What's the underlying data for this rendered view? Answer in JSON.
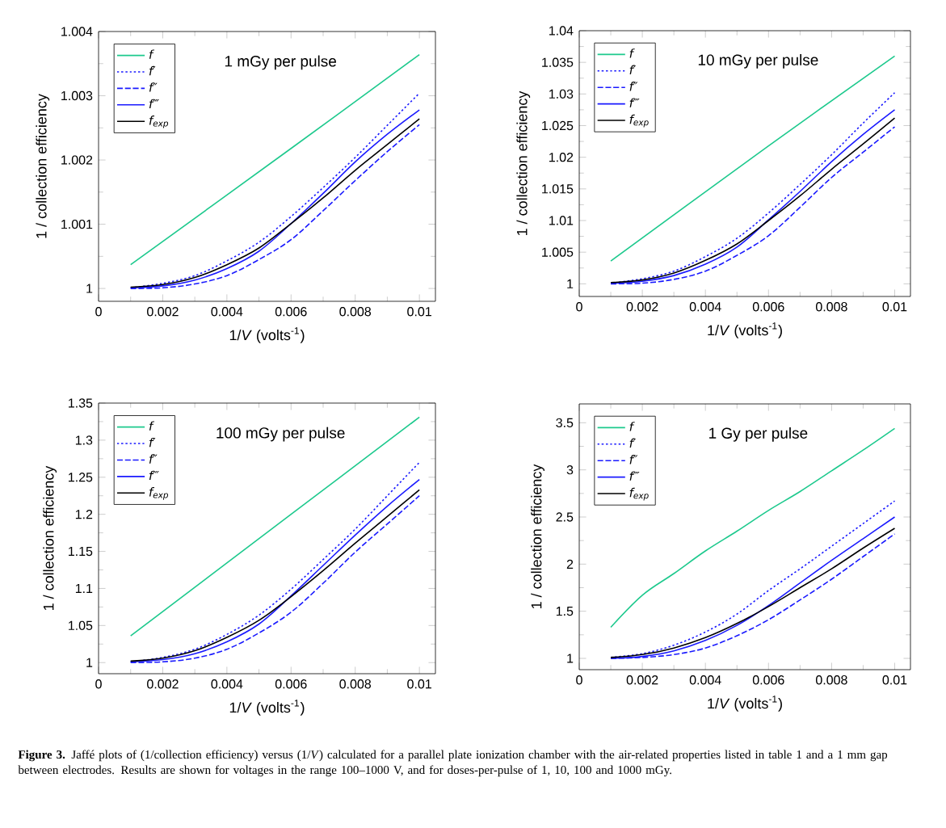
{
  "chart_data": [
    {
      "type": "line",
      "title": "1 mGy per pulse",
      "xlabel": "1/*V* (volts$^{-1}$)",
      "ylabel": "1 / collection efficiency",
      "legend": "top left",
      "grid": false,
      "xlim": [
        0,
        0.0105
      ],
      "ylim": [
        0.9998,
        1.004
      ],
      "xticks": [
        0,
        0.002,
        0.004,
        0.006,
        0.008,
        0.01
      ],
      "yticks": [
        1,
        1.001,
        1.002,
        1.003,
        1.004
      ],
      "x": [
        0.001,
        0.002,
        0.003,
        0.004,
        0.005,
        0.006,
        0.007,
        0.008,
        0.009,
        0.01
      ],
      "series": [
        {
          "name": "f",
          "color": "#1dc98d",
          "line_style": "solid",
          "x": [
            0.001,
            0.006,
            0.01
          ],
          "values": [
            1.00037,
            1.00218,
            1.00364
          ]
        },
        {
          "name": "f′",
          "color": "#1a1aff",
          "line_style": "dotted",
          "values": [
            1.00001,
            1.00008,
            1.0002,
            1.00043,
            1.00072,
            1.00112,
            1.00157,
            1.00204,
            1.00254,
            1.00304
          ]
        },
        {
          "name": "f″",
          "color": "#1a1aff",
          "line_style": "dashed",
          "values": [
            1.0,
            1.00001,
            1.00007,
            1.0002,
            1.00045,
            1.00076,
            1.00121,
            1.00168,
            1.00213,
            1.00255
          ]
        },
        {
          "name": "f‴",
          "color": "#1a1aff",
          "line_style": "solid",
          "values": [
            1.00001,
            1.00004,
            1.00013,
            1.00031,
            1.00058,
            1.00101,
            1.00148,
            1.00197,
            1.0024,
            1.00278
          ]
        },
        {
          "name": "f$_{exp}$",
          "color": "#000000",
          "line_style": "solid",
          "values": [
            1.00002,
            1.00006,
            1.00017,
            1.00037,
            1.00063,
            1.00101,
            1.00141,
            1.00184,
            1.00224,
            1.00264
          ]
        }
      ]
    },
    {
      "type": "line",
      "title": "10 mGy per pulse",
      "xlabel": "1/*V* (volts$^{-1}$)",
      "ylabel": "1 / collection efficiency",
      "legend": "top left",
      "grid": false,
      "xlim": [
        0,
        0.0105
      ],
      "ylim": [
        0.998,
        1.04
      ],
      "xticks": [
        0,
        0.002,
        0.004,
        0.006,
        0.008,
        0.01
      ],
      "yticks": [
        1,
        1.005,
        1.01,
        1.015,
        1.02,
        1.025,
        1.03,
        1.035,
        1.04
      ],
      "x": [
        0.001,
        0.002,
        0.003,
        0.004,
        0.005,
        0.006,
        0.007,
        0.008,
        0.009,
        0.01
      ],
      "series": [
        {
          "name": "f",
          "color": "#1dc98d",
          "line_style": "solid",
          "x": [
            0.001,
            0.006,
            0.01
          ],
          "values": [
            1.0036,
            1.0218,
            1.036
          ]
        },
        {
          "name": "f′",
          "color": "#1a1aff",
          "line_style": "dotted",
          "values": [
            1.0001,
            1.0008,
            1.002,
            1.0043,
            1.0072,
            1.0112,
            1.0157,
            1.0204,
            1.0254,
            1.0302
          ]
        },
        {
          "name": "f″",
          "color": "#1a1aff",
          "line_style": "dashed",
          "values": [
            1.0,
            1.0001,
            1.0007,
            1.002,
            1.0045,
            1.0076,
            1.0121,
            1.0168,
            1.0208,
            1.0248
          ]
        },
        {
          "name": "f‴",
          "color": "#1a1aff",
          "line_style": "solid",
          "values": [
            1.0001,
            1.0004,
            1.0013,
            1.0031,
            1.0058,
            1.0101,
            1.0146,
            1.0193,
            1.0236,
            1.0275
          ]
        },
        {
          "name": "f$_{exp}$",
          "color": "#000000",
          "line_style": "solid",
          "values": [
            1.0002,
            1.0006,
            1.0017,
            1.0037,
            1.0063,
            1.01,
            1.0139,
            1.0181,
            1.0221,
            1.0262
          ]
        }
      ]
    },
    {
      "type": "line",
      "title": "100 mGy per pulse",
      "xlabel": "1/*V* (volts$^{-1}$)",
      "ylabel": "1 / collection efficiency",
      "legend": "top left",
      "grid": false,
      "xlim": [
        0,
        0.0105
      ],
      "ylim": [
        0.985,
        1.35
      ],
      "xticks": [
        0,
        0.002,
        0.004,
        0.006,
        0.008,
        0.01
      ],
      "yticks": [
        1,
        1.05,
        1.1,
        1.15,
        1.2,
        1.25,
        1.3,
        1.35
      ],
      "x": [
        0.001,
        0.002,
        0.003,
        0.004,
        0.005,
        0.006,
        0.007,
        0.008,
        0.009,
        0.01
      ],
      "series": [
        {
          "name": "f",
          "color": "#1dc98d",
          "line_style": "solid",
          "x": [
            0.001,
            0.006,
            0.01
          ],
          "values": [
            1.036,
            1.2,
            1.331
          ]
        },
        {
          "name": "f′",
          "color": "#1a1aff",
          "line_style": "dotted",
          "values": [
            1.001,
            1.007,
            1.018,
            1.038,
            1.064,
            1.099,
            1.139,
            1.18,
            1.225,
            1.27
          ]
        },
        {
          "name": "f″",
          "color": "#1a1aff",
          "line_style": "dashed",
          "values": [
            1.0,
            1.001,
            1.006,
            1.018,
            1.04,
            1.068,
            1.107,
            1.149,
            1.187,
            1.225
          ]
        },
        {
          "name": "f‴",
          "color": "#1a1aff",
          "line_style": "solid",
          "values": [
            1.001,
            1.004,
            1.012,
            1.028,
            1.052,
            1.09,
            1.131,
            1.172,
            1.211,
            1.247
          ]
        },
        {
          "name": "f$_{exp}$",
          "color": "#000000",
          "line_style": "solid",
          "values": [
            1.002,
            1.006,
            1.016,
            1.034,
            1.057,
            1.089,
            1.124,
            1.161,
            1.197,
            1.233
          ]
        }
      ]
    },
    {
      "type": "line",
      "title": "1 Gy per pulse",
      "xlabel": "1/*V* (volts$^{-1}$)",
      "ylabel": "1 / collection efficiency",
      "legend": "top left",
      "grid": false,
      "xlim": [
        0,
        0.0105
      ],
      "ylim": [
        0.88,
        3.7
      ],
      "xticks": [
        0,
        0.002,
        0.004,
        0.006,
        0.008,
        0.01
      ],
      "yticks": [
        1,
        1.5,
        2,
        2.5,
        3,
        3.5
      ],
      "x": [
        0.001,
        0.002,
        0.003,
        0.004,
        0.005,
        0.006,
        0.007,
        0.008,
        0.009,
        0.01
      ],
      "annotations": [
        "**Figure 3.** Jaffé plots of (1/collection efficiency) versus (1/*V*) calculated for a parallel plate ionization chamber with the air-related properties listed in table 1 and a 1 mm gap between electrodes. Results are shown for voltages in the range 100–1000 V, and for doses-per-pulse of 1, 10, 100 and 1000 mGy."
      ],
      "series": [
        {
          "name": "f",
          "color": "#1dc98d",
          "line_style": "solid",
          "values": [
            1.33,
            1.67,
            1.9,
            2.14,
            2.35,
            2.57,
            2.77,
            2.99,
            3.21,
            3.44
          ]
        },
        {
          "name": "f′",
          "color": "#1a1aff",
          "line_style": "dotted",
          "values": [
            1.01,
            1.05,
            1.14,
            1.28,
            1.47,
            1.72,
            1.95,
            2.19,
            2.43,
            2.67
          ]
        },
        {
          "name": "f″",
          "color": "#1a1aff",
          "line_style": "dashed",
          "values": [
            1.0,
            1.01,
            1.04,
            1.11,
            1.24,
            1.41,
            1.62,
            1.84,
            2.08,
            2.32
          ]
        },
        {
          "name": "f‴",
          "color": "#1a1aff",
          "line_style": "solid",
          "values": [
            1.0,
            1.02,
            1.08,
            1.19,
            1.35,
            1.56,
            1.8,
            2.04,
            2.27,
            2.5
          ]
        },
        {
          "name": "f$_{exp}$",
          "color": "#000000",
          "line_style": "solid",
          "values": [
            1.01,
            1.04,
            1.11,
            1.22,
            1.37,
            1.55,
            1.75,
            1.95,
            2.17,
            2.38
          ]
        }
      ]
    }
  ]
}
